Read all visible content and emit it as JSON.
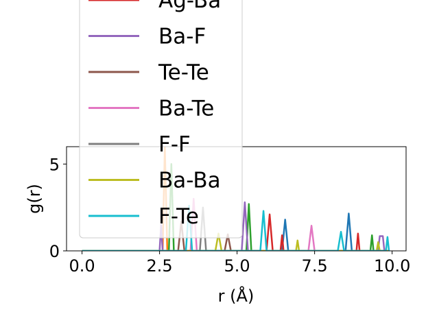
{
  "chart_data": {
    "type": "line",
    "title": "",
    "xlabel": "r (Å)",
    "ylabel": "g(r)",
    "xlim": [
      -0.5,
      10.45
    ],
    "ylim": [
      0,
      6.0
    ],
    "xticks": [
      0.0,
      2.5,
      5.0,
      7.5,
      10.0
    ],
    "xtick_labels": [
      "0.0",
      "2.5",
      "5.0",
      "7.5",
      "10.0"
    ],
    "yticks": [
      0,
      5
    ],
    "ytick_labels": [
      "0",
      "5"
    ],
    "legend_position": "upper-left (extends above the axes)",
    "series": [
      {
        "name": "",
        "color": "#1f77b4",
        "points": [
          [
            0,
            0
          ],
          [
            2.5,
            0
          ],
          [
            6.45,
            0
          ],
          [
            6.55,
            1.8
          ],
          [
            6.65,
            0
          ],
          [
            8.5,
            0
          ],
          [
            8.6,
            2.15
          ],
          [
            8.7,
            0
          ],
          [
            9.9,
            0
          ]
        ]
      },
      {
        "name": "",
        "color": "#ff7f0e",
        "points": [
          [
            0,
            0
          ],
          [
            2.6,
            0
          ],
          [
            2.67,
            6.0
          ],
          [
            2.75,
            0
          ],
          [
            9.9,
            0
          ]
        ]
      },
      {
        "name": "",
        "color": "#2ca02c",
        "points": [
          [
            0,
            0
          ],
          [
            2.8,
            0
          ],
          [
            2.88,
            5.0
          ],
          [
            2.96,
            0
          ],
          [
            5.3,
            0
          ],
          [
            5.38,
            2.7
          ],
          [
            5.46,
            0
          ],
          [
            9.3,
            0
          ],
          [
            9.35,
            0.9
          ],
          [
            9.4,
            0
          ],
          [
            9.9,
            0
          ]
        ]
      },
      {
        "name": "Ag-Ba",
        "color": "#d62728",
        "points": [
          [
            0,
            0
          ],
          [
            5.95,
            0
          ],
          [
            6.05,
            2.1
          ],
          [
            6.15,
            0
          ],
          [
            6.4,
            0
          ],
          [
            6.45,
            0.9
          ],
          [
            6.5,
            0
          ],
          [
            8.85,
            0
          ],
          [
            8.9,
            1.0
          ],
          [
            8.95,
            0
          ],
          [
            9.9,
            0
          ]
        ]
      },
      {
        "name": "Ba-F",
        "color": "#9467bd",
        "points": [
          [
            0,
            0
          ],
          [
            2.5,
            0
          ],
          [
            2.55,
            1.5
          ],
          [
            2.6,
            0
          ],
          [
            5.15,
            0
          ],
          [
            5.25,
            2.8
          ],
          [
            5.35,
            0
          ],
          [
            9.55,
            0
          ],
          [
            9.6,
            0.85
          ],
          [
            9.7,
            0.85
          ],
          [
            9.75,
            0
          ],
          [
            9.9,
            0
          ]
        ]
      },
      {
        "name": "Te-Te",
        "color": "#8c564b",
        "points": [
          [
            0,
            0
          ],
          [
            3.1,
            0
          ],
          [
            3.2,
            1.7
          ],
          [
            3.3,
            0
          ],
          [
            4.6,
            0
          ],
          [
            4.7,
            0.95
          ],
          [
            4.8,
            0
          ],
          [
            9.9,
            0
          ]
        ]
      },
      {
        "name": "Ba-Te",
        "color": "#e377c2",
        "points": [
          [
            0,
            0
          ],
          [
            3.5,
            0
          ],
          [
            3.6,
            3.0
          ],
          [
            3.7,
            0
          ],
          [
            7.3,
            0
          ],
          [
            7.4,
            1.45
          ],
          [
            7.5,
            0
          ],
          [
            9.9,
            0
          ]
        ]
      },
      {
        "name": "F-F",
        "color": "#7f7f7f",
        "points": [
          [
            0,
            0
          ],
          [
            3.8,
            0
          ],
          [
            3.9,
            2.5
          ],
          [
            4.0,
            0
          ],
          [
            9.9,
            0
          ]
        ]
      },
      {
        "name": "Ba-Ba",
        "color": "#bcbd22",
        "points": [
          [
            0,
            0
          ],
          [
            4.3,
            0
          ],
          [
            4.4,
            1.0
          ],
          [
            4.5,
            0
          ],
          [
            6.9,
            0
          ],
          [
            6.95,
            0.6
          ],
          [
            7.0,
            0
          ],
          [
            9.5,
            0
          ],
          [
            9.55,
            0.5
          ],
          [
            9.6,
            0
          ],
          [
            9.9,
            0
          ]
        ]
      },
      {
        "name": "F-Te",
        "color": "#17becf",
        "points": [
          [
            0,
            0
          ],
          [
            3.35,
            0
          ],
          [
            3.45,
            2.6
          ],
          [
            3.55,
            0
          ],
          [
            5.75,
            0
          ],
          [
            5.85,
            2.3
          ],
          [
            5.95,
            0
          ],
          [
            8.25,
            0
          ],
          [
            8.35,
            1.1
          ],
          [
            8.45,
            0
          ],
          [
            9.8,
            0
          ],
          [
            9.85,
            0.8
          ],
          [
            9.9,
            0
          ]
        ]
      }
    ],
    "legend": [
      {
        "label": "Ag-Ba",
        "color": "#d62728"
      },
      {
        "label": "Ba-F",
        "color": "#9467bd"
      },
      {
        "label": "Te-Te",
        "color": "#8c564b"
      },
      {
        "label": "Ba-Te",
        "color": "#e377c2"
      },
      {
        "label": "F-F",
        "color": "#7f7f7f"
      },
      {
        "label": "Ba-Ba",
        "color": "#bcbd22"
      },
      {
        "label": "F-Te",
        "color": "#17becf"
      }
    ]
  }
}
